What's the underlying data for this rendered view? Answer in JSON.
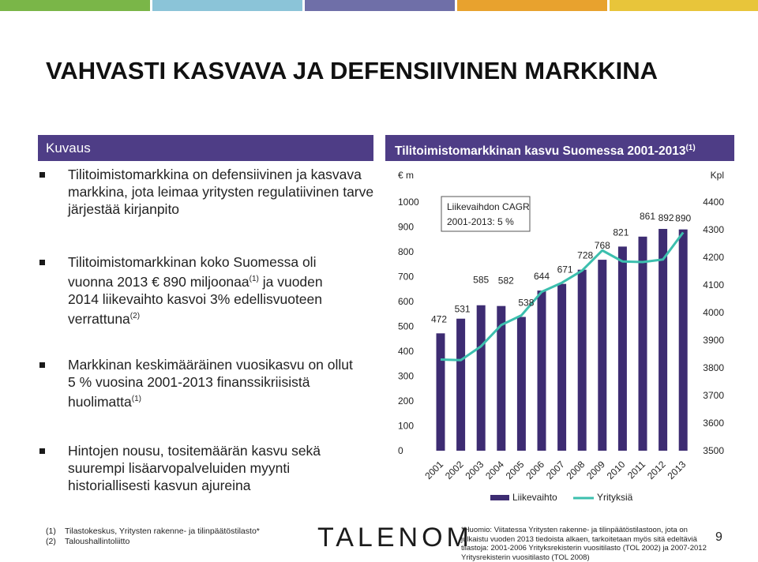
{
  "header_colors": [
    "#7ab648",
    "#8bc4d8",
    "#6f6fa8",
    "#e8a22e",
    "#e8c53a"
  ],
  "title": "VAHVASTI KASVAVA JA DEFENSIIVINEN MARKKINA",
  "left_panel": {
    "header": "Kuvaus",
    "bullets": [
      {
        "text": "Tilitoimistomarkkina on defensiivinen ja kasvava markkina, jota leimaa yritysten regulatiivinen tarve järjestää kirjanpito"
      },
      {
        "line1": "Tilitoimistomarkkinan koko Suomessa oli",
        "line2a": "vuonna 2013 € 890 miljoonaa",
        "sup1": "(1)",
        "line2b": " ja vuoden",
        "line3": "2014 liikevaihto kasvoi 3% edellisvuoteen",
        "line4": "verrattuna",
        "sup2": "(2)"
      },
      {
        "line1": "Markkinan keskimääräinen vuosikasvu on ollut",
        "line2": "5 % vuosina 2001-2013 finanssikriisistä",
        "line3": "huolimatta",
        "sup": "(1)"
      },
      {
        "text": "Hintojen nousu, tositemäärän kasvu sekä suurempi lisäarvopalveluiden myynti historiallisesti kasvun ajureina"
      }
    ]
  },
  "right_panel": {
    "header": "Tilitoimistomarkkinan kasvu Suomessa 2001-2013",
    "header_sup": "(1)"
  },
  "chart_data": {
    "type": "bar",
    "categories": [
      "2001",
      "2002",
      "2003",
      "2004",
      "2005",
      "2006",
      "2007",
      "2008",
      "2009",
      "2010",
      "2011",
      "2012",
      "2013"
    ],
    "series": [
      {
        "name": "Liikevaihto",
        "type": "bar",
        "axis": "left",
        "color": "#3d2c72",
        "values": [
          472,
          531,
          585,
          582,
          538,
          644,
          671,
          728,
          768,
          821,
          861,
          892,
          890
        ],
        "labels": [
          "472",
          "531",
          "585",
          "582",
          "538",
          "644",
          "671",
          "728",
          "768",
          "821",
          "861",
          "892",
          "890"
        ]
      },
      {
        "name": "Yrityksiä",
        "type": "line",
        "axis": "right",
        "color": "#3cbfae",
        "values": [
          3830,
          3828,
          3878,
          3955,
          3990,
          4075,
          4108,
          4152,
          4225,
          4185,
          4183,
          4192,
          4290
        ]
      }
    ],
    "ylabel_left": "€ m",
    "ylabel_right": "Kpl",
    "ylim_left": [
      0,
      1000
    ],
    "ylim_right": [
      3500,
      4400
    ],
    "yticks_left": [
      "0",
      "100",
      "200",
      "300",
      "400",
      "500",
      "600",
      "700",
      "800",
      "900",
      "1000"
    ],
    "yticks_right": [
      "3500",
      "3600",
      "3700",
      "3800",
      "3900",
      "4000",
      "4100",
      "4200",
      "4300",
      "4400"
    ],
    "annotation": [
      "Liikevaihdon CAGR",
      "2001-2013: 5 %"
    ],
    "legend_position": "bottom",
    "grid": false
  },
  "footnotes": [
    {
      "num": "(1)",
      "text": "Tilastokeskus, Yritysten rakenne- ja tilinpäätöstilasto*"
    },
    {
      "num": "(2)",
      "text": "Taloushallintoliitto"
    }
  ],
  "note_lines": [
    "*Huomio: Viitatessa Yritysten rakenne- ja tilinpäätöstilastoon, jota on",
    "julkaistu vuoden 2013 tiedoista alkaen, tarkoitetaan myös sitä edeltäviä",
    "tilastoja: 2001-2006 Yrityksrekisterin vuositilasto (TOL 2002) ja 2007-2012",
    "Yritysrekisterin vuositilasto (TOL 2008)"
  ],
  "logo": "TALENOM",
  "page_number": "9"
}
